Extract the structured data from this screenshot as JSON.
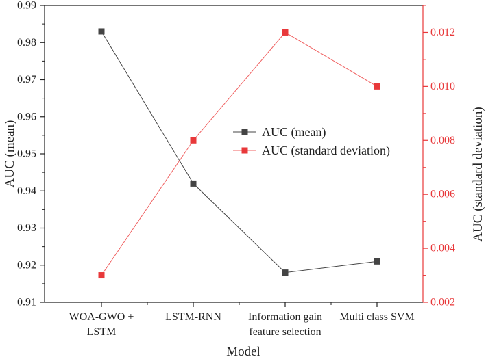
{
  "chart_data": {
    "type": "line",
    "xlabel": "Model",
    "categories": [
      [
        "WOA-GWO +",
        "LSTM"
      ],
      [
        "LSTM-RNN"
      ],
      [
        "Information gain",
        "feature selection"
      ],
      [
        "Multi class SVM"
      ]
    ],
    "series": [
      {
        "name": "AUC (mean)",
        "axis": "left",
        "color": "#444444",
        "marker_color": "#444444",
        "values": [
          0.983,
          0.942,
          0.918,
          0.921
        ]
      },
      {
        "name": "AUC (standard deviation)",
        "axis": "right",
        "color": "#f06060",
        "marker_color": "#e8383a",
        "values": [
          0.003,
          0.008,
          0.012,
          0.01
        ]
      }
    ],
    "y_left": {
      "label": "AUC (mean)",
      "lim": [
        0.91,
        0.99
      ],
      "ticks": [
        "0.91",
        "0.92",
        "0.93",
        "0.94",
        "0.95",
        "0.96",
        "0.97",
        "0.98",
        "0.99"
      ]
    },
    "y_right": {
      "label": "AUC (standard deviation)",
      "lim": [
        0.002,
        0.013
      ],
      "ticks": [
        "0.002",
        "0.004",
        "0.006",
        "0.008",
        "0.010",
        "0.012"
      ],
      "color": "#e8383a"
    },
    "legend": {
      "position": "center-right"
    },
    "grid": false
  }
}
